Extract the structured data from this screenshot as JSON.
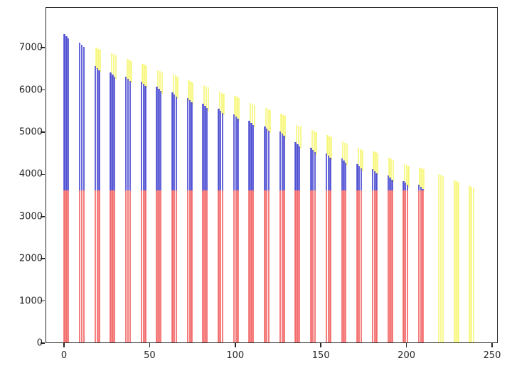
{
  "figure": {
    "background": "#ffffff",
    "axis_color": "#262626"
  },
  "colors": {
    "red_dark": "#f26a6a",
    "red_light": "#fbaeae",
    "blue_dark": "#4f4fd2",
    "blue_light": "#9d9dea",
    "yellow_dark": "#f6f67e",
    "yellow_light": "#fdfdb6"
  },
  "chart_data": {
    "type": "bar",
    "subtype": "stacked-vertical-thin-clusters",
    "title": "",
    "xlabel": "",
    "ylabel": "",
    "xlim": [
      -11,
      253
    ],
    "ylim": [
      0,
      7963
    ],
    "grid": false,
    "legend": "none",
    "x_tick_labels": [
      "0",
      "50",
      "100",
      "150",
      "200",
      "250"
    ],
    "x_tick_values": [
      0,
      50,
      100,
      150,
      200,
      250
    ],
    "y_tick_labels": [
      "0",
      "1000",
      "2000",
      "3000",
      "4000",
      "5000",
      "6000",
      "7000"
    ],
    "y_tick_values": [
      0,
      1000,
      2000,
      3000,
      4000,
      5000,
      6000,
      7000
    ],
    "series_description": [
      {
        "name": "red-base-segment",
        "color": "light red",
        "note": "constant height 3600 for clusters 1-24"
      },
      {
        "name": "blue-middle-segment",
        "color": "blue",
        "note": "stacked on red, top value decreases per cluster"
      },
      {
        "name": "yellow-top-segment",
        "color": "pale yellow",
        "note": "cap above blue from cluster 3 on; clusters 25-27 are yellow only, full height"
      }
    ],
    "clusters": [
      {
        "x": 1,
        "red": 3600,
        "blue": 7300,
        "yellow": null
      },
      {
        "x": 10,
        "red": 3600,
        "blue": 7100,
        "yellow": null
      },
      {
        "x": 19,
        "red": 3600,
        "blue": 6550,
        "yellow": 6980
      },
      {
        "x": 28,
        "red": 3600,
        "blue": 6400,
        "yellow": 6855
      },
      {
        "x": 37,
        "red": 3600,
        "blue": 6300,
        "yellow": 6720
      },
      {
        "x": 46,
        "red": 3600,
        "blue": 6180,
        "yellow": 6600
      },
      {
        "x": 55,
        "red": 3600,
        "blue": 6060,
        "yellow": 6450
      },
      {
        "x": 64,
        "red": 3600,
        "blue": 5930,
        "yellow": 6350
      },
      {
        "x": 73,
        "red": 3600,
        "blue": 5790,
        "yellow": 6210
      },
      {
        "x": 82,
        "red": 3600,
        "blue": 5650,
        "yellow": 6090
      },
      {
        "x": 91,
        "red": 3600,
        "blue": 5540,
        "yellow": 5940
      },
      {
        "x": 100,
        "red": 3600,
        "blue": 5400,
        "yellow": 5845
      },
      {
        "x": 109,
        "red": 3600,
        "blue": 5260,
        "yellow": 5680
      },
      {
        "x": 118,
        "red": 3600,
        "blue": 5120,
        "yellow": 5560
      },
      {
        "x": 127,
        "red": 3600,
        "blue": 5000,
        "yellow": 5420
      },
      {
        "x": 136,
        "red": 3600,
        "blue": 4750,
        "yellow": 5160
      },
      {
        "x": 145,
        "red": 3600,
        "blue": 4610,
        "yellow": 5040
      },
      {
        "x": 154,
        "red": 3600,
        "blue": 4480,
        "yellow": 4910
      },
      {
        "x": 163,
        "red": 3600,
        "blue": 4360,
        "yellow": 4760
      },
      {
        "x": 172,
        "red": 3600,
        "blue": 4220,
        "yellow": 4610
      },
      {
        "x": 181,
        "red": 3600,
        "blue": 4110,
        "yellow": 4530
      },
      {
        "x": 190,
        "red": 3600,
        "blue": 3950,
        "yellow": 4370
      },
      {
        "x": 199,
        "red": 3600,
        "blue": 3830,
        "yellow": 4230
      },
      {
        "x": 208,
        "red": 3600,
        "blue": 3740,
        "yellow": 4150
      },
      {
        "x": 219,
        "red": 0,
        "blue": null,
        "yellow": 3990
      },
      {
        "x": 228,
        "red": 0,
        "blue": null,
        "yellow": 3850
      },
      {
        "x": 237,
        "red": 0,
        "blue": null,
        "yellow": 3710
      }
    ]
  }
}
